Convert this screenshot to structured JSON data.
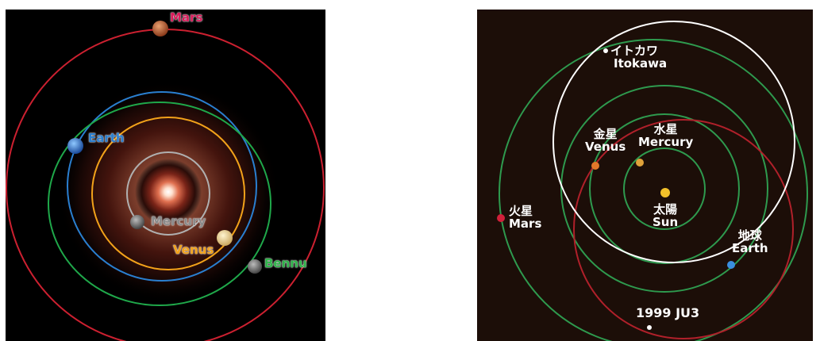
{
  "left_diagram": {
    "labels": {
      "mars": "Mars",
      "earth": "Earth",
      "mercury": "Mercury",
      "venus": "Venus",
      "bennu": "Bennu"
    },
    "colors": {
      "mars_orbit": "#cc2030",
      "earth_orbit": "#2a7fd0",
      "bennu_orbit": "#1fa84a",
      "venus_orbit": "#f2a21a",
      "mercury_orbit": "#b0b0b0",
      "mars_label": "#d81b5a",
      "earth_label": "#2a7fd0",
      "venus_label": "#f2a21a",
      "bennu_label": "#2fb34a",
      "mercury_label": "#8a8a8a"
    }
  },
  "right_diagram": {
    "labels": {
      "itokawa_ja": "イトカワ",
      "itokawa_en": "Itokawa",
      "venus_ja": "金星",
      "venus_en": "Venus",
      "mercury_ja": "水星",
      "mercury_en": "Mercury",
      "sun_ja": "太陽",
      "sun_en": "Sun",
      "mars_ja": "火星",
      "mars_en": "Mars",
      "earth_ja": "地球",
      "earth_en": "Earth",
      "ju3": "1999 JU3"
    },
    "colors": {
      "planet_orbits": "#2e9a4e",
      "itokawa_orbit": "#ffffff",
      "ju3_orbit": "#b0202a",
      "sun": "#f2c02a",
      "mercury": "#e0a23a",
      "venus": "#e2782a",
      "earth": "#3a8ee0",
      "mars": "#d0203a"
    }
  }
}
